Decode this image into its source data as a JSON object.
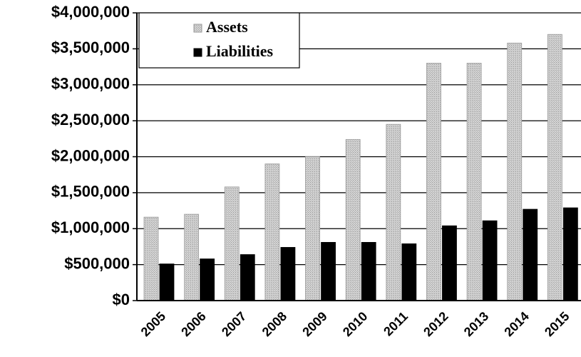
{
  "chart_data": {
    "type": "bar",
    "categories": [
      "2005",
      "2006",
      "2007",
      "2008",
      "2009",
      "2010",
      "2011",
      "2012",
      "2013",
      "2014",
      "2015"
    ],
    "series": [
      {
        "name": "Assets",
        "color": "#c4c4c4",
        "values": [
          1160000,
          1200000,
          1580000,
          1900000,
          2000000,
          2240000,
          2450000,
          3300000,
          3300000,
          3580000,
          3700000
        ]
      },
      {
        "name": "Liabilities",
        "color": "#000000",
        "values": [
          510000,
          580000,
          640000,
          740000,
          810000,
          810000,
          790000,
          1040000,
          1110000,
          1270000,
          1290000
        ]
      }
    ],
    "ylim": [
      0,
      4000000
    ],
    "yticks": [
      {
        "value": 0,
        "label": "$0"
      },
      {
        "value": 500000,
        "label": "$500,000"
      },
      {
        "value": 1000000,
        "label": "$1,000,000"
      },
      {
        "value": 1500000,
        "label": "$1,500,000"
      },
      {
        "value": 2000000,
        "label": "$2,000,000"
      },
      {
        "value": 2500000,
        "label": "$2,500,000"
      },
      {
        "value": 3000000,
        "label": "$3,000,000"
      },
      {
        "value": 3500000,
        "label": "$3,500,000"
      },
      {
        "value": 4000000,
        "label": "$4,000,000"
      }
    ],
    "grid": true,
    "legend": "upper-left"
  }
}
